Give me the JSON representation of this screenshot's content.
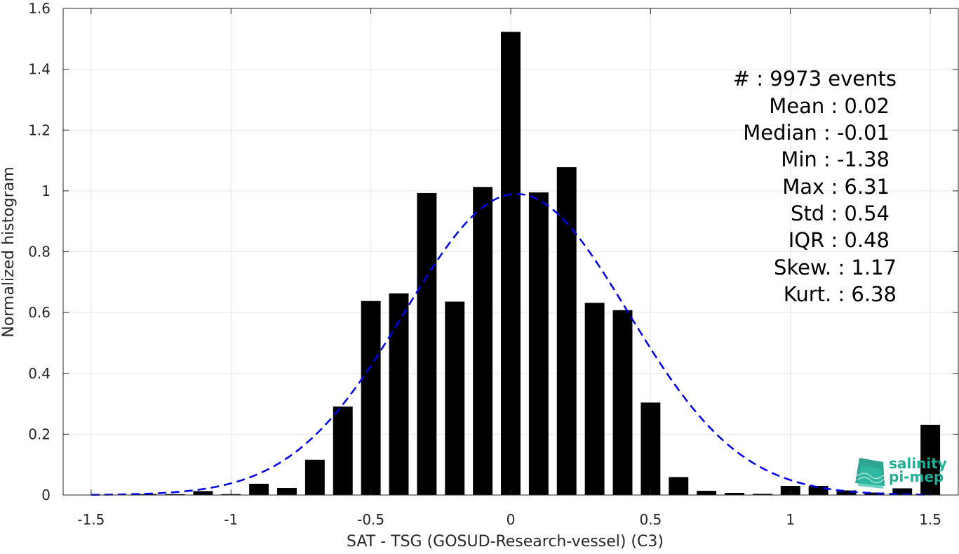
{
  "chart_data": {
    "type": "bar",
    "xlabel": "SAT - TSG (GOSUD-Research-vessel) (C3)",
    "ylabel": "Normalized histogram",
    "xlim": [
      -1.6,
      1.6
    ],
    "ylim": [
      0,
      1.6
    ],
    "grid": true,
    "x_ticks": [
      -1.5,
      -1,
      -0.5,
      0,
      0.5,
      1,
      1.5
    ],
    "x_tick_labels": [
      "-1.5",
      "-1",
      "-0.5",
      "0",
      "0.5",
      "1",
      "1.5"
    ],
    "y_ticks": [
      0,
      0.2,
      0.4,
      0.6,
      0.8,
      1,
      1.2,
      1.4,
      1.6
    ],
    "y_tick_labels": [
      "0",
      "0.2",
      "0.4",
      "0.6",
      "0.8",
      "1",
      "1.2",
      "1.4",
      "1.6"
    ],
    "bin_width": 0.1,
    "bar_color": "#000000",
    "bars": {
      "x": [
        -1.5,
        -1.4,
        -1.3,
        -1.2,
        -1.1,
        -1.0,
        -0.9,
        -0.8,
        -0.7,
        -0.6,
        -0.5,
        -0.4,
        -0.3,
        -0.2,
        -0.1,
        0.0,
        0.1,
        0.2,
        0.3,
        0.4,
        0.5,
        0.6,
        0.7,
        0.8,
        0.9,
        1.0,
        1.1,
        1.2,
        1.3,
        1.4,
        1.5
      ],
      "values": [
        0.0,
        0.0,
        0.003,
        0.003,
        0.013,
        0.003,
        0.037,
        0.023,
        0.116,
        0.291,
        0.638,
        0.663,
        0.993,
        0.636,
        1.013,
        1.523,
        0.995,
        1.078,
        0.632,
        0.608,
        0.304,
        0.059,
        0.014,
        0.007,
        0.004,
        0.03,
        0.03,
        0.015,
        0.008,
        0.022,
        0.231
      ]
    },
    "fit_curve": {
      "name": "gaussian fit",
      "style": "dashed",
      "color": "#0000ee",
      "mean": 0.02,
      "std": 0.4,
      "peak": 0.99
    },
    "stats": [
      {
        "label": "#  :",
        "value": "9973 events"
      },
      {
        "label": "Mean :",
        "value": "0.02"
      },
      {
        "label": "Median :",
        "value": "-0.01"
      },
      {
        "label": "Min :",
        "value": "-1.38"
      },
      {
        "label": "Max :",
        "value": "6.31"
      },
      {
        "label": "Std :",
        "value": "0.54"
      },
      {
        "label": "IQR :",
        "value": "0.48"
      },
      {
        "label": "Skew. :",
        "value": "1.17"
      },
      {
        "label": "Kurt. :",
        "value": "6.38"
      }
    ]
  },
  "logo": {
    "line1": "salinity",
    "line2": "pi-mep",
    "color": "#1fae96"
  }
}
